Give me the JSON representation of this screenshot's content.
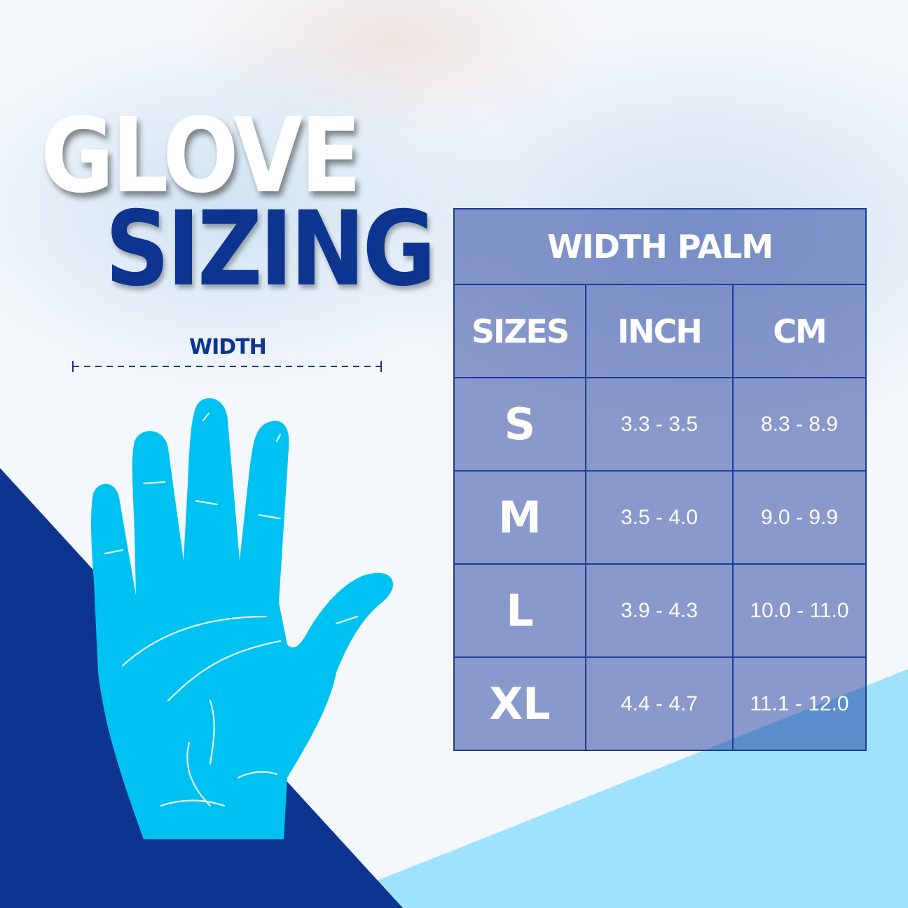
{
  "title": {
    "line1": "GLOVE",
    "line2": "SIZING"
  },
  "width_label": "WIDTH",
  "colors": {
    "dark_blue": "#0d3590",
    "hand_blue": "#00c2f2",
    "light_blue": "#9ee3fb"
  },
  "table": {
    "title": "WIDTH PALM",
    "headers": [
      "SIZES",
      "INCH",
      "CM"
    ],
    "rows": [
      {
        "size": "S",
        "inch": "3.3 - 3.5",
        "cm": "8.3 - 8.9"
      },
      {
        "size": "M",
        "inch": "3.5 - 4.0",
        "cm": "9.0 - 9.9"
      },
      {
        "size": "L",
        "inch": "3.9 - 4.3",
        "cm": "10.0 - 11.0"
      },
      {
        "size": "XL",
        "inch": "4.4 - 4.7",
        "cm": "11.1 - 12.0"
      }
    ]
  }
}
